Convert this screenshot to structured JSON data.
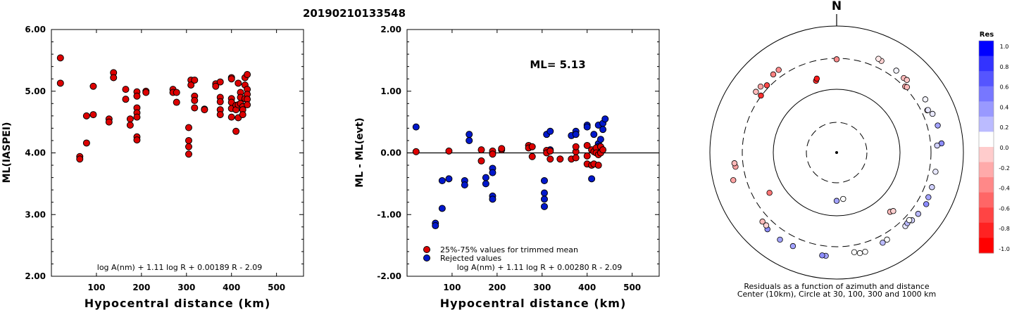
{
  "title": "20190210133548",
  "colors": {
    "accepted": "#dd0000",
    "rejected": "#0018cc",
    "outline": "#000000"
  },
  "chart_data": [
    {
      "type": "scatter",
      "ylabel": "ML(IASPEI)",
      "xlabel": "Hypocentral distance (km)",
      "xlim": [
        0,
        560
      ],
      "ylim": [
        2.0,
        6.0
      ],
      "xticks": [
        100,
        200,
        300,
        400,
        500
      ],
      "yticks": [
        2.0,
        3.0,
        4.0,
        5.0,
        6.0
      ],
      "ytick_labels": [
        "2.00",
        "3.00",
        "4.00",
        "5.00",
        "6.00"
      ],
      "formula": "log A(nm) + 1.11 log R + 0.00189 R - 2.09",
      "points": [
        [
          20,
          5.54
        ],
        [
          20,
          5.13
        ],
        [
          63,
          3.94
        ],
        [
          63,
          3.9
        ],
        [
          78,
          4.6
        ],
        [
          78,
          4.16
        ],
        [
          93,
          5.08
        ],
        [
          93,
          4.62
        ],
        [
          128,
          4.55
        ],
        [
          128,
          4.5
        ],
        [
          138,
          5.3
        ],
        [
          138,
          5.22
        ],
        [
          165,
          5.03
        ],
        [
          165,
          4.87
        ],
        [
          175,
          4.55
        ],
        [
          175,
          4.45
        ],
        [
          190,
          4.99
        ],
        [
          190,
          4.92
        ],
        [
          190,
          4.73
        ],
        [
          190,
          4.65
        ],
        [
          190,
          4.58
        ],
        [
          190,
          4.26
        ],
        [
          190,
          4.21
        ],
        [
          210,
          5.0
        ],
        [
          210,
          4.98
        ],
        [
          270,
          5.03
        ],
        [
          270,
          4.98
        ],
        [
          278,
          4.98
        ],
        [
          278,
          4.82
        ],
        [
          305,
          4.41
        ],
        [
          305,
          4.2
        ],
        [
          305,
          4.1
        ],
        [
          305,
          3.98
        ],
        [
          310,
          5.18
        ],
        [
          310,
          5.1
        ],
        [
          318,
          5.18
        ],
        [
          318,
          4.92
        ],
        [
          318,
          4.85
        ],
        [
          318,
          4.73
        ],
        [
          340,
          4.71
        ],
        [
          340,
          4.7
        ],
        [
          365,
          5.12
        ],
        [
          365,
          5.08
        ],
        [
          375,
          5.15
        ],
        [
          375,
          4.9
        ],
        [
          375,
          4.83
        ],
        [
          375,
          4.7
        ],
        [
          375,
          4.62
        ],
        [
          400,
          5.22
        ],
        [
          400,
          5.2
        ],
        [
          400,
          4.88
        ],
        [
          400,
          4.82
        ],
        [
          400,
          4.72
        ],
        [
          400,
          4.58
        ],
        [
          410,
          4.77
        ],
        [
          410,
          4.7
        ],
        [
          410,
          4.35
        ],
        [
          415,
          5.13
        ],
        [
          415,
          4.78
        ],
        [
          415,
          4.57
        ],
        [
          420,
          4.98
        ],
        [
          420,
          4.9
        ],
        [
          420,
          4.8
        ],
        [
          425,
          4.75
        ],
        [
          425,
          4.7
        ],
        [
          425,
          4.62
        ],
        [
          430,
          5.22
        ],
        [
          430,
          5.1
        ],
        [
          430,
          4.88
        ],
        [
          435,
          5.27
        ],
        [
          435,
          5.03
        ],
        [
          435,
          4.95
        ],
        [
          435,
          4.87
        ],
        [
          435,
          4.78
        ]
      ]
    },
    {
      "type": "scatter",
      "ylabel": "ML - ML(evt)",
      "xlabel": "Hypocentral distance (km)",
      "xlim": [
        0,
        560
      ],
      "ylim": [
        -2.0,
        2.0
      ],
      "xticks": [
        100,
        200,
        300,
        400,
        500
      ],
      "yticks": [
        -2.0,
        -1.0,
        0.0,
        1.0,
        2.0
      ],
      "ytick_labels": [
        "-2.00",
        "-1.00",
        "0.00",
        "1.00",
        "2.00"
      ],
      "annotation": "ML= 5.13",
      "formula": "log A(nm) + 1.11 log R + 0.00280 R - 2.09",
      "legend": [
        "25%-75% values for trimmed mean",
        "Rejected values"
      ],
      "accepted": [
        [
          20,
          0.02
        ],
        [
          93,
          0.03
        ],
        [
          165,
          0.05
        ],
        [
          165,
          -0.13
        ],
        [
          190,
          0.03
        ],
        [
          190,
          -0.02
        ],
        [
          210,
          0.05
        ],
        [
          210,
          0.07
        ],
        [
          270,
          0.12
        ],
        [
          270,
          0.08
        ],
        [
          278,
          -0.06
        ],
        [
          278,
          0.1
        ],
        [
          310,
          0.04
        ],
        [
          310,
          0.0
        ],
        [
          318,
          0.03
        ],
        [
          318,
          -0.1
        ],
        [
          340,
          -0.1
        ],
        [
          365,
          -0.1
        ],
        [
          375,
          0.02
        ],
        [
          375,
          -0.08
        ],
        [
          375,
          0.1
        ],
        [
          400,
          -0.05
        ],
        [
          400,
          0.12
        ],
        [
          400,
          -0.18
        ],
        [
          410,
          -0.2
        ],
        [
          410,
          0.05
        ],
        [
          415,
          0.02
        ],
        [
          415,
          -0.18
        ],
        [
          420,
          0.08
        ],
        [
          420,
          0.0
        ],
        [
          425,
          -0.03
        ],
        [
          425,
          -0.2
        ],
        [
          430,
          0.1
        ],
        [
          430,
          0.0
        ],
        [
          435,
          0.05
        ]
      ],
      "rejected": [
        [
          20,
          0.42
        ],
        [
          63,
          -1.14
        ],
        [
          63,
          -1.18
        ],
        [
          78,
          -0.45
        ],
        [
          78,
          -0.9
        ],
        [
          93,
          -0.42
        ],
        [
          128,
          -0.45
        ],
        [
          128,
          -0.52
        ],
        [
          138,
          0.3
        ],
        [
          138,
          0.2
        ],
        [
          175,
          -0.4
        ],
        [
          175,
          -0.5
        ],
        [
          190,
          -0.25
        ],
        [
          190,
          -0.32
        ],
        [
          190,
          -0.7
        ],
        [
          190,
          -0.75
        ],
        [
          305,
          -0.45
        ],
        [
          305,
          -0.65
        ],
        [
          305,
          -0.75
        ],
        [
          305,
          -0.87
        ],
        [
          310,
          0.3
        ],
        [
          318,
          0.35
        ],
        [
          318,
          0.05
        ],
        [
          365,
          0.28
        ],
        [
          375,
          0.35
        ],
        [
          375,
          0.3
        ],
        [
          400,
          0.45
        ],
        [
          400,
          0.42
        ],
        [
          410,
          -0.42
        ],
        [
          415,
          0.3
        ],
        [
          425,
          0.45
        ],
        [
          425,
          0.15
        ],
        [
          425,
          0.1
        ],
        [
          430,
          0.22
        ],
        [
          435,
          0.48
        ],
        [
          435,
          0.38
        ],
        [
          440,
          0.55
        ]
      ]
    },
    {
      "type": "scatter",
      "subtype": "polar",
      "north_label": "N",
      "caption_line1": "Residuals as a function of azimuth and distance",
      "caption_line2": "Center (10km), Circle at 30, 100, 300 and 1000 km",
      "rings_km": [
        30,
        100,
        300,
        1000
      ],
      "colorbar": {
        "title": "Res",
        "labels": [
          "1.0",
          "0.8",
          "0.6",
          "0.4",
          "0.2",
          "0.0",
          "-0.2",
          "-0.4",
          "-0.6",
          "-0.8",
          "-1.0"
        ],
        "colors": [
          "#0000ff",
          "#3333ff",
          "#5555ff",
          "#7777ff",
          "#9999ff",
          "#bbbbff",
          "#ffffff",
          "#ffcccc",
          "#ffaaaa",
          "#ff8888",
          "#ff6666",
          "#ff4444",
          "#ff2222",
          "#ff0000"
        ]
      },
      "points": [
        {
          "az": 321,
          "dist_km": 380,
          "res": -0.55
        },
        {
          "az": 325,
          "dist_km": 385,
          "res": -0.5
        },
        {
          "az": 311,
          "dist_km": 380,
          "res": -0.4
        },
        {
          "az": 307,
          "dist_km": 385,
          "res": -0.3
        },
        {
          "az": 314,
          "dist_km": 330,
          "res": -0.8
        },
        {
          "az": 307,
          "dist_km": 305,
          "res": -0.9
        },
        {
          "az": 0,
          "dist_km": 290,
          "res": -0.5
        },
        {
          "az": 344,
          "dist_km": 150,
          "res": -0.9
        },
        {
          "az": 345,
          "dist_km": 160,
          "res": -1.0
        },
        {
          "az": 26,
          "dist_km": 400,
          "res": -0.2
        },
        {
          "az": 24,
          "dist_km": 410,
          "res": -0.1
        },
        {
          "az": 36,
          "dist_km": 390,
          "res": 0.05
        },
        {
          "az": 42,
          "dist_km": 375,
          "res": -0.3
        },
        {
          "az": 44,
          "dist_km": 385,
          "res": -0.25
        },
        {
          "az": 46,
          "dist_km": 310,
          "res": -0.4
        },
        {
          "az": 47,
          "dist_km": 320,
          "res": -0.3
        },
        {
          "az": 59,
          "dist_km": 420,
          "res": 0.05
        },
        {
          "az": 68,
          "dist_km": 420,
          "res": 0.1
        },
        {
          "az": 65,
          "dist_km": 370,
          "res": -0.2
        },
        {
          "az": 65,
          "dist_km": 380,
          "res": 0.1
        },
        {
          "az": 75,
          "dist_km": 440,
          "res": 0.4
        },
        {
          "az": 85,
          "dist_km": 450,
          "res": 0.5
        },
        {
          "az": 86,
          "dist_km": 380,
          "res": 0.2
        },
        {
          "az": 101,
          "dist_km": 380,
          "res": 0.1
        },
        {
          "az": 110,
          "dist_km": 390,
          "res": 0.2
        },
        {
          "az": 116,
          "dist_km": 400,
          "res": 0.4
        },
        {
          "az": 120,
          "dist_km": 420,
          "res": 0.5
        },
        {
          "az": 127,
          "dist_km": 400,
          "res": 0.3
        },
        {
          "az": 132,
          "dist_km": 390,
          "res": 0.2
        },
        {
          "az": 137,
          "dist_km": 380,
          "res": 0.1
        },
        {
          "az": 135,
          "dist_km": 370,
          "res": 0.3
        },
        {
          "az": 133,
          "dist_km": 360,
          "res": 0.0
        },
        {
          "az": 150,
          "dist_km": 380,
          "res": 0.0
        },
        {
          "az": 153,
          "dist_km": 390,
          "res": 0.3
        },
        {
          "az": 164,
          "dist_km": 420,
          "res": 0.0
        },
        {
          "az": 167,
          "dist_km": 420,
          "res": 0.0
        },
        {
          "az": 170,
          "dist_km": 390,
          "res": 0.0
        },
        {
          "az": 186,
          "dist_km": 430,
          "res": 0.4
        },
        {
          "az": 188,
          "dist_km": 430,
          "res": 0.5
        },
        {
          "az": 205,
          "dist_km": 420,
          "res": 0.4
        },
        {
          "az": 213,
          "dist_km": 430,
          "res": 0.4
        },
        {
          "az": 222,
          "dist_km": 420,
          "res": 0.5
        },
        {
          "az": 224,
          "dist_km": 390,
          "res": -0.2
        },
        {
          "az": 227,
          "dist_km": 390,
          "res": -0.3
        },
        {
          "az": 138,
          "dist_km": 180,
          "res": -0.3
        },
        {
          "az": 136,
          "dist_km": 190,
          "res": -0.2
        },
        {
          "az": 239,
          "dist_km": 170,
          "res": -0.6
        },
        {
          "az": 255,
          "dist_km": 480,
          "res": -0.4
        },
        {
          "az": 262,
          "dist_km": 400,
          "res": -0.4
        },
        {
          "az": 264,
          "dist_km": 410,
          "res": -0.3
        },
        {
          "az": 172,
          "dist_km": 55,
          "res": 0.0
        },
        {
          "az": 180,
          "dist_km": 58,
          "res": 0.4
        }
      ]
    }
  ]
}
